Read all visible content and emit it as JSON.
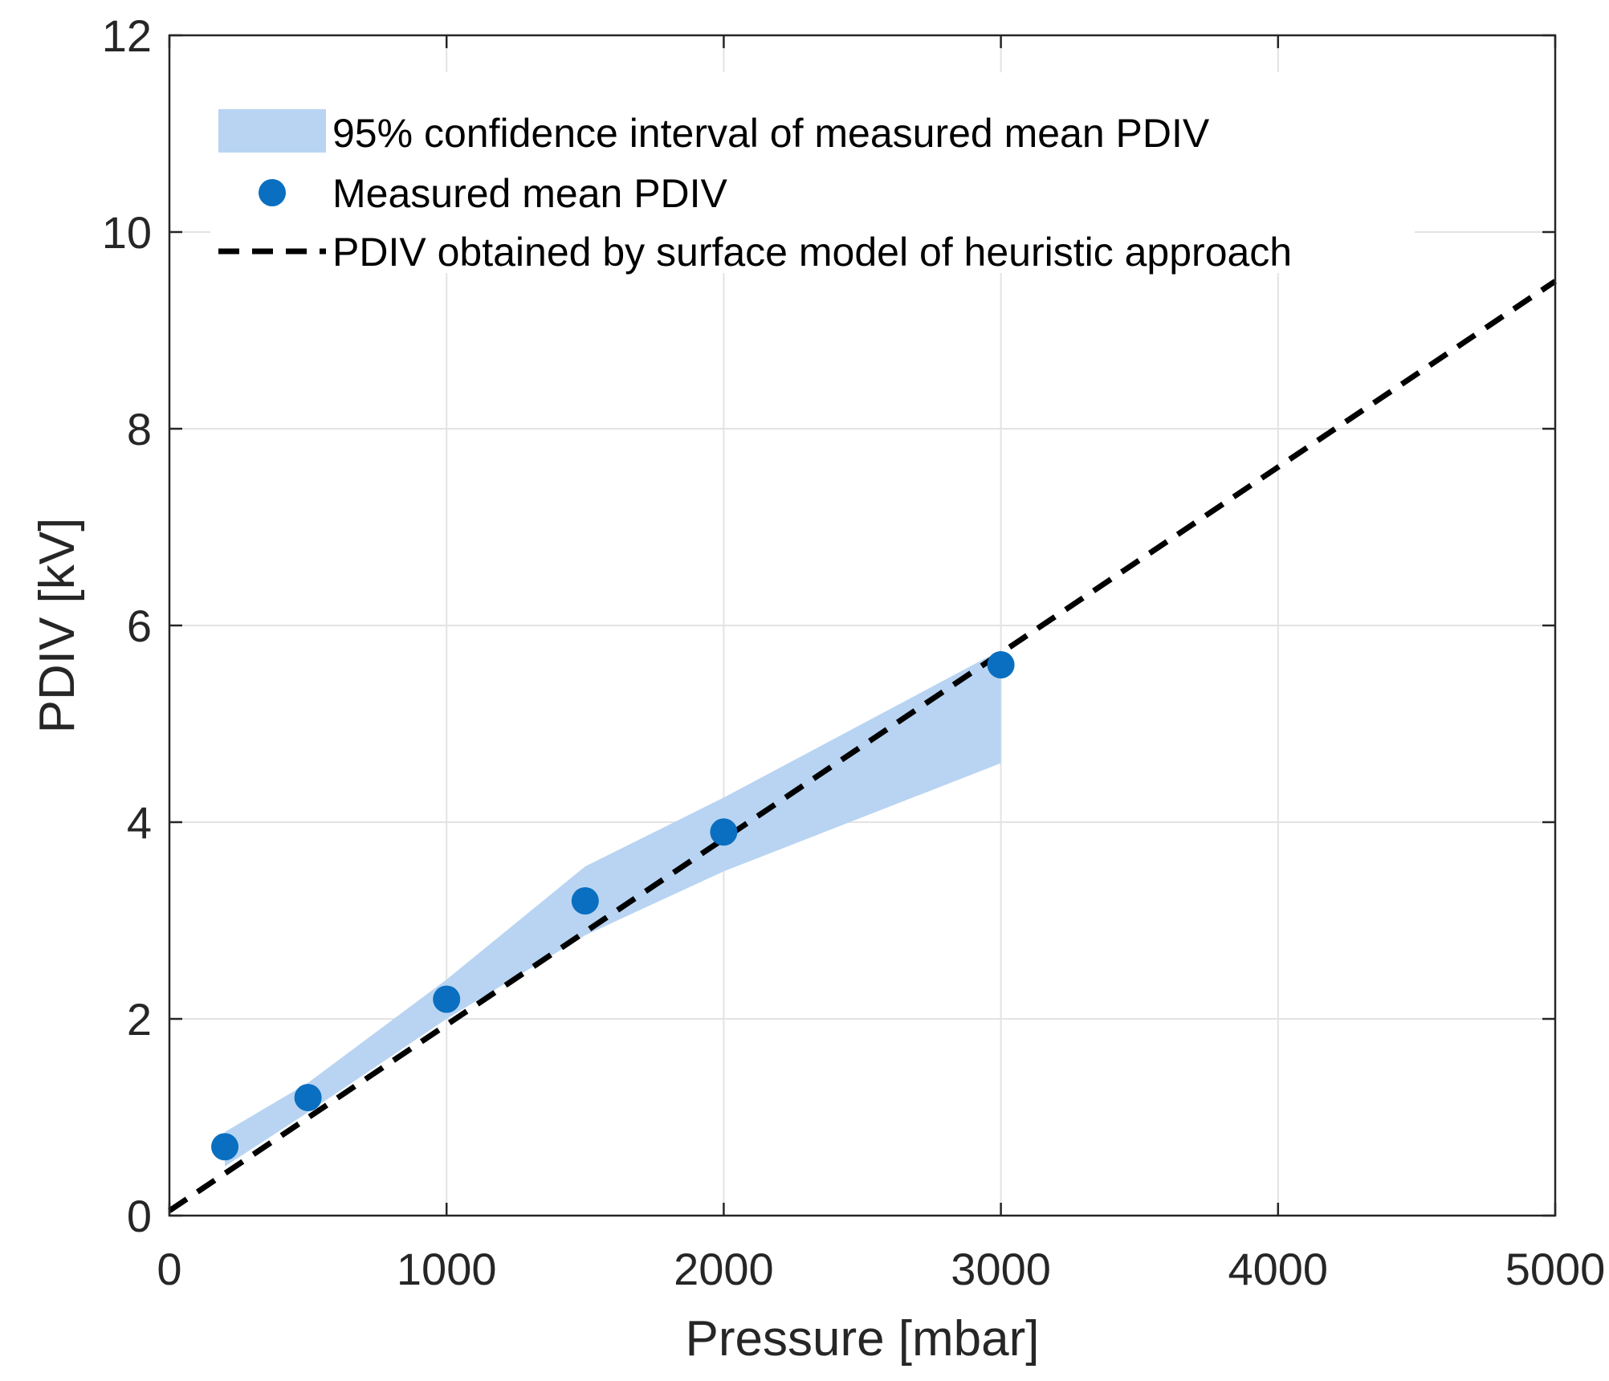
{
  "chart_data": {
    "type": "line",
    "title": "",
    "xlabel": "Pressure [mbar]",
    "ylabel": "PDIV [kV]",
    "xlim": [
      0,
      5000
    ],
    "ylim": [
      0,
      12
    ],
    "xticks": [
      0,
      1000,
      2000,
      3000,
      4000,
      5000
    ],
    "yticks": [
      0,
      2,
      4,
      6,
      8,
      10,
      12
    ],
    "xtick_labels": [
      "0",
      "1000",
      "2000",
      "3000",
      "4000",
      "5000"
    ],
    "ytick_labels": [
      "0",
      "2",
      "4",
      "6",
      "8",
      "10",
      "12"
    ],
    "grid": true,
    "legend_position": "top-left",
    "colors": {
      "band": "#b8d4f2",
      "points": "#0a6fc0",
      "line": "#000000"
    },
    "series": [
      {
        "name": "95% confidence interval of measured mean PDIV",
        "kind": "band",
        "x": [
          200,
          500,
          1000,
          1500,
          2000,
          3000
        ],
        "lower": [
          0.5,
          1.05,
          2.0,
          2.85,
          3.5,
          4.6
        ],
        "upper": [
          0.85,
          1.35,
          2.4,
          3.55,
          4.25,
          5.75
        ]
      },
      {
        "name": "Measured mean PDIV",
        "kind": "scatter",
        "x": [
          200,
          500,
          1000,
          1500,
          2000,
          3000
        ],
        "y": [
          0.7,
          1.2,
          2.2,
          3.2,
          3.9,
          5.6
        ]
      },
      {
        "name": "PDIV obtained by surface model of heuristic approach",
        "kind": "line",
        "style": "dashed",
        "x": [
          0,
          5000
        ],
        "y": [
          0.05,
          9.5
        ]
      }
    ]
  }
}
